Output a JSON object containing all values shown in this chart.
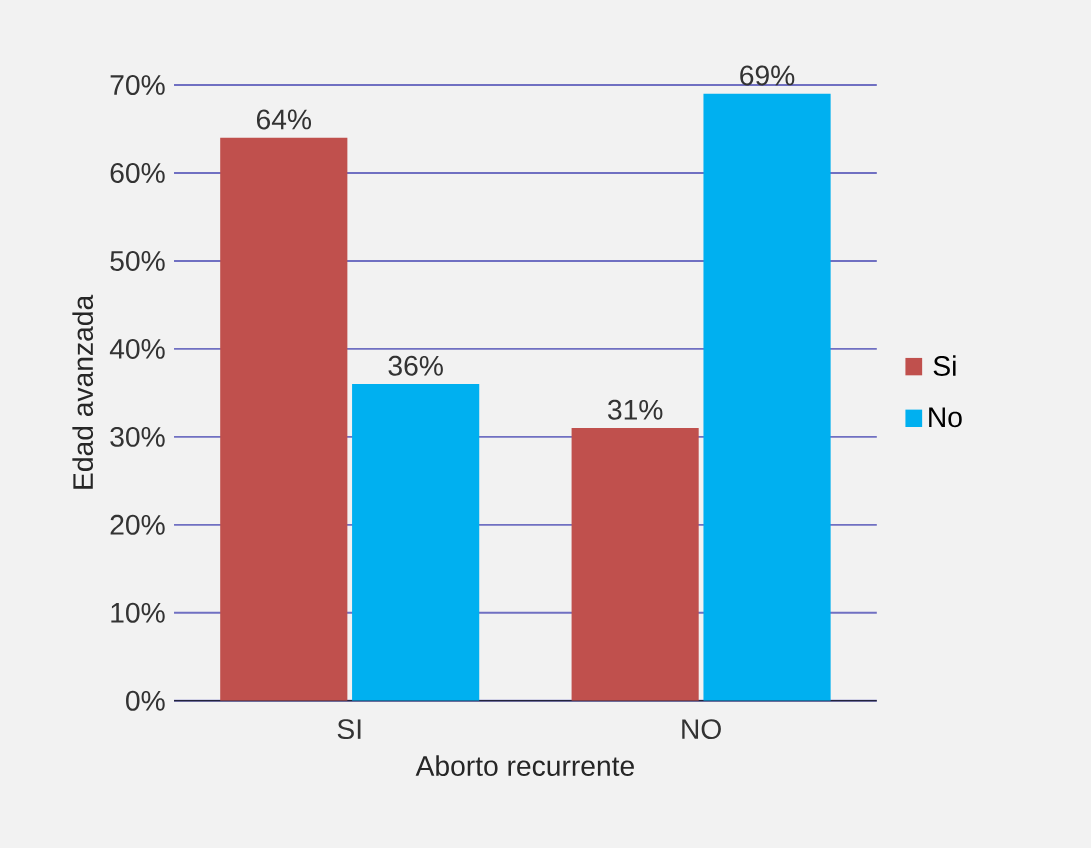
{
  "chart_data": {
    "type": "bar",
    "xlabel": "Aborto recurrente",
    "ylabel": "Edad avanzada",
    "categories": [
      "SI",
      "NO"
    ],
    "series": [
      {
        "name": "Si",
        "color": "#c0504d",
        "values": [
          64,
          31
        ],
        "value_labels": [
          "64%",
          "31%"
        ]
      },
      {
        "name": "No",
        "color": "#00b0f0",
        "values": [
          36,
          69
        ],
        "value_labels": [
          "36%",
          "69%"
        ]
      }
    ],
    "ylim": [
      0,
      70
    ],
    "yticks": [
      {
        "value": 0,
        "label": "0%"
      },
      {
        "value": 10,
        "label": "10%"
      },
      {
        "value": 20,
        "label": "20%"
      },
      {
        "value": 30,
        "label": "30%"
      },
      {
        "value": 40,
        "label": "40%"
      },
      {
        "value": 50,
        "label": "50%"
      },
      {
        "value": 60,
        "label": "60%"
      },
      {
        "value": 70,
        "label": "70%"
      }
    ],
    "grid": "y",
    "legend": "right"
  }
}
